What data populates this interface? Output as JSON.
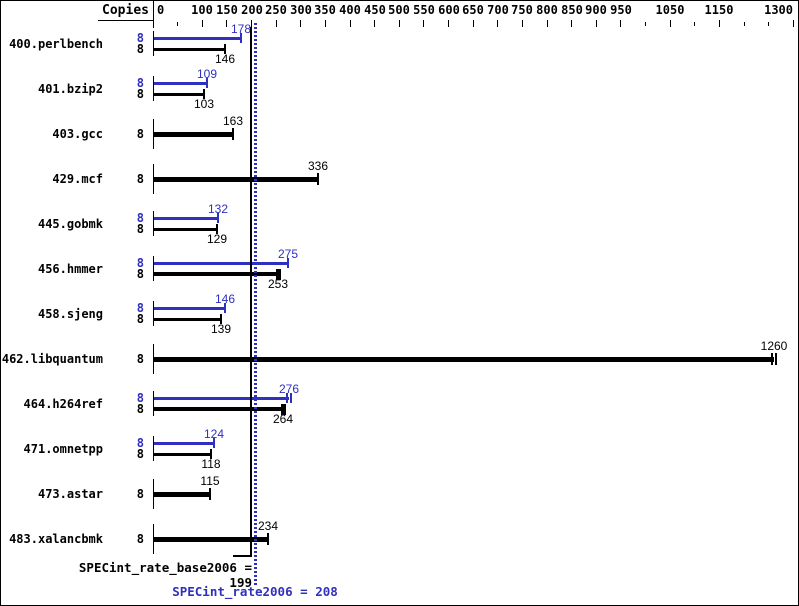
{
  "colors": {
    "peak_blue": "#3030c0",
    "base_black": "#000000"
  },
  "chart_data": {
    "type": "bar",
    "orientation": "horizontal",
    "copies_header": "Copies",
    "axis": {
      "min": 0,
      "max": 1300,
      "tick_step": 50,
      "labeled_ticks": [
        0,
        100,
        150,
        200,
        250,
        300,
        350,
        400,
        450,
        500,
        550,
        600,
        650,
        700,
        750,
        800,
        850,
        900,
        950,
        1050,
        1150,
        1300
      ],
      "grid": false
    },
    "benchmarks": [
      {
        "name": "400.perlbench",
        "rows": [
          {
            "kind": "peak",
            "copies": "8",
            "value": 178,
            "cap": "single",
            "weight": "normal"
          },
          {
            "kind": "base",
            "copies": "8",
            "value": 146,
            "cap": "single",
            "weight": "normal"
          }
        ]
      },
      {
        "name": "401.bzip2",
        "rows": [
          {
            "kind": "peak",
            "copies": "8",
            "value": 109,
            "cap": "single",
            "weight": "normal"
          },
          {
            "kind": "base",
            "copies": "8",
            "value": 103,
            "cap": "single",
            "weight": "normal"
          }
        ]
      },
      {
        "name": "403.gcc",
        "rows": [
          {
            "kind": "base",
            "copies": "8",
            "value": 163,
            "cap": "single",
            "weight": "bold"
          }
        ]
      },
      {
        "name": "429.mcf",
        "rows": [
          {
            "kind": "base",
            "copies": "8",
            "value": 336,
            "cap": "single",
            "weight": "bold"
          }
        ]
      },
      {
        "name": "445.gobmk",
        "rows": [
          {
            "kind": "peak",
            "copies": "8",
            "value": 132,
            "cap": "single",
            "weight": "normal"
          },
          {
            "kind": "base",
            "copies": "8",
            "value": 129,
            "cap": "single",
            "weight": "normal"
          }
        ]
      },
      {
        "name": "456.hmmer",
        "rows": [
          {
            "kind": "peak",
            "copies": "8",
            "value": 275,
            "cap": "single",
            "weight": "normal"
          },
          {
            "kind": "base",
            "copies": "8",
            "value": 253,
            "cap": "block",
            "weight": "medium"
          }
        ]
      },
      {
        "name": "458.sjeng",
        "rows": [
          {
            "kind": "peak",
            "copies": "8",
            "value": 146,
            "cap": "single",
            "weight": "normal"
          },
          {
            "kind": "base",
            "copies": "8",
            "value": 139,
            "cap": "single",
            "weight": "normal"
          }
        ]
      },
      {
        "name": "462.libquantum",
        "rows": [
          {
            "kind": "base",
            "copies": "8",
            "value": 1260,
            "cap": "double",
            "weight": "bold"
          }
        ]
      },
      {
        "name": "464.h264ref",
        "rows": [
          {
            "kind": "peak",
            "copies": "8",
            "value": 276,
            "cap": "double",
            "weight": "normal"
          },
          {
            "kind": "base",
            "copies": "8",
            "value": 264,
            "cap": "block",
            "weight": "medium"
          }
        ]
      },
      {
        "name": "471.omnetpp",
        "rows": [
          {
            "kind": "peak",
            "copies": "8",
            "value": 124,
            "cap": "single",
            "weight": "normal"
          },
          {
            "kind": "base",
            "copies": "8",
            "value": 118,
            "cap": "single",
            "weight": "normal"
          }
        ]
      },
      {
        "name": "473.astar",
        "rows": [
          {
            "kind": "base",
            "copies": "8",
            "value": 115,
            "cap": "single",
            "weight": "bold"
          }
        ]
      },
      {
        "name": "483.xalancbmk",
        "rows": [
          {
            "kind": "base",
            "copies": "8",
            "value": 234,
            "cap": "single",
            "weight": "bold"
          }
        ]
      }
    ],
    "reference_lines": [
      {
        "name": "base",
        "label": "SPECint_rate_base2006 = 199",
        "value": 199,
        "style": "solid",
        "color": "#000000"
      },
      {
        "name": "peak",
        "label": "SPECint_rate2006 = 208",
        "value": 208,
        "style": "dotted",
        "color": "#3030c0"
      }
    ]
  }
}
